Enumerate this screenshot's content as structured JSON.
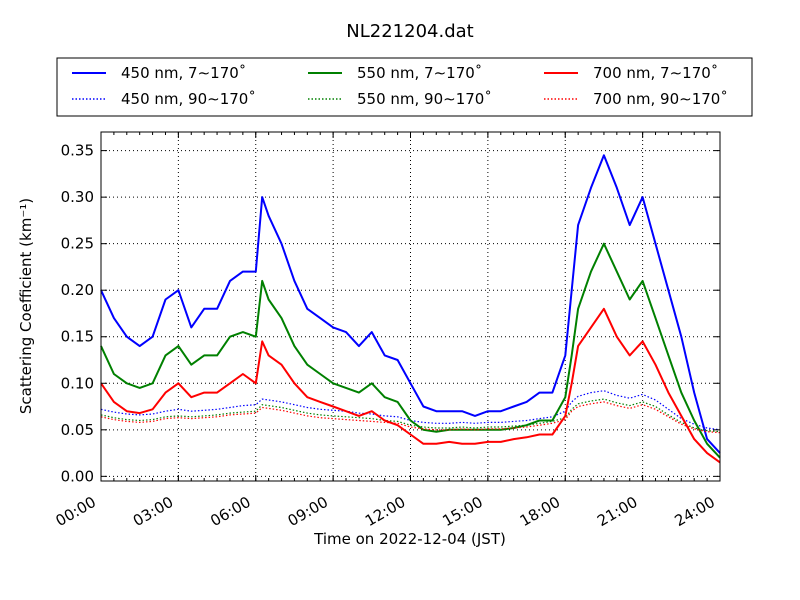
{
  "chart_data": {
    "type": "line",
    "title": "NL221204.dat",
    "xlabel": "Time on 2022-12-04 (JST)",
    "ylabel": "Scattering Coefficient (km⁻¹)",
    "xlim": [
      0,
      24
    ],
    "ylim": [
      -0.005,
      0.37
    ],
    "x_ticks": [
      0,
      3,
      6,
      9,
      12,
      15,
      18,
      21,
      24
    ],
    "x_tick_labels": [
      "00:00",
      "03:00",
      "06:00",
      "09:00",
      "12:00",
      "15:00",
      "18:00",
      "21:00",
      "24:00"
    ],
    "y_ticks": [
      0.0,
      0.05,
      0.1,
      0.15,
      0.2,
      0.25,
      0.3,
      0.35
    ],
    "y_tick_labels": [
      "0.00",
      "0.05",
      "0.10",
      "0.15",
      "0.20",
      "0.25",
      "0.30",
      "0.35"
    ],
    "grid": true,
    "legend_position": "top",
    "x": [
      0,
      0.5,
      1,
      1.5,
      2,
      2.5,
      3,
      3.5,
      4,
      4.5,
      5,
      5.5,
      6,
      6.25,
      6.5,
      7,
      7.5,
      8,
      8.5,
      9,
      9.5,
      10,
      10.5,
      11,
      11.5,
      12,
      12.5,
      13,
      13.5,
      14,
      14.5,
      15,
      15.5,
      16,
      16.5,
      17,
      17.5,
      18,
      18.25,
      18.5,
      19,
      19.5,
      20,
      20.5,
      21,
      21.5,
      22,
      22.5,
      23,
      23.5,
      24
    ],
    "series": [
      {
        "name": "450 nm, 7∼170˚",
        "color": "#0000ff",
        "style": "solid",
        "values": [
          0.2,
          0.17,
          0.15,
          0.14,
          0.15,
          0.19,
          0.2,
          0.16,
          0.18,
          0.18,
          0.21,
          0.22,
          0.22,
          0.3,
          0.28,
          0.25,
          0.21,
          0.18,
          0.17,
          0.16,
          0.155,
          0.14,
          0.155,
          0.13,
          0.125,
          0.1,
          0.075,
          0.07,
          0.07,
          0.07,
          0.065,
          0.07,
          0.07,
          0.075,
          0.08,
          0.09,
          0.09,
          0.13,
          0.2,
          0.27,
          0.31,
          0.345,
          0.31,
          0.27,
          0.3,
          0.25,
          0.2,
          0.15,
          0.09,
          0.04,
          0.025
        ]
      },
      {
        "name": "450 nm, 90∼170˚",
        "color": "#0000ff",
        "style": "dotted",
        "values": [
          0.072,
          0.069,
          0.067,
          0.066,
          0.067,
          0.07,
          0.072,
          0.07,
          0.071,
          0.072,
          0.074,
          0.076,
          0.077,
          0.083,
          0.082,
          0.08,
          0.077,
          0.074,
          0.072,
          0.071,
          0.07,
          0.068,
          0.067,
          0.065,
          0.064,
          0.06,
          0.058,
          0.057,
          0.057,
          0.058,
          0.057,
          0.058,
          0.058,
          0.059,
          0.06,
          0.062,
          0.064,
          0.07,
          0.08,
          0.086,
          0.09,
          0.092,
          0.087,
          0.084,
          0.088,
          0.082,
          0.072,
          0.062,
          0.056,
          0.052,
          0.05
        ]
      },
      {
        "name": "550 nm, 7∼170˚",
        "color": "#008000",
        "style": "solid",
        "values": [
          0.14,
          0.11,
          0.1,
          0.095,
          0.1,
          0.13,
          0.14,
          0.12,
          0.13,
          0.13,
          0.15,
          0.155,
          0.15,
          0.21,
          0.19,
          0.17,
          0.14,
          0.12,
          0.11,
          0.1,
          0.095,
          0.09,
          0.1,
          0.085,
          0.08,
          0.06,
          0.05,
          0.048,
          0.05,
          0.05,
          0.05,
          0.05,
          0.05,
          0.052,
          0.055,
          0.06,
          0.06,
          0.085,
          0.13,
          0.18,
          0.22,
          0.25,
          0.22,
          0.19,
          0.21,
          0.17,
          0.13,
          0.09,
          0.06,
          0.035,
          0.02
        ]
      },
      {
        "name": "550 nm, 90∼170˚",
        "color": "#008000",
        "style": "dotted",
        "values": [
          0.066,
          0.063,
          0.061,
          0.06,
          0.061,
          0.064,
          0.065,
          0.064,
          0.065,
          0.066,
          0.068,
          0.069,
          0.07,
          0.077,
          0.076,
          0.074,
          0.071,
          0.068,
          0.066,
          0.065,
          0.064,
          0.063,
          0.062,
          0.06,
          0.059,
          0.055,
          0.053,
          0.052,
          0.052,
          0.053,
          0.052,
          0.053,
          0.053,
          0.054,
          0.055,
          0.057,
          0.059,
          0.063,
          0.072,
          0.078,
          0.081,
          0.083,
          0.079,
          0.076,
          0.08,
          0.075,
          0.066,
          0.058,
          0.052,
          0.049,
          0.048
        ]
      },
      {
        "name": "700 nm, 7∼170˚",
        "color": "#ff0000",
        "style": "solid",
        "values": [
          0.1,
          0.08,
          0.07,
          0.068,
          0.072,
          0.09,
          0.1,
          0.085,
          0.09,
          0.09,
          0.1,
          0.11,
          0.1,
          0.145,
          0.13,
          0.12,
          0.1,
          0.085,
          0.08,
          0.075,
          0.07,
          0.065,
          0.07,
          0.06,
          0.055,
          0.045,
          0.035,
          0.035,
          0.037,
          0.035,
          0.035,
          0.037,
          0.037,
          0.04,
          0.042,
          0.045,
          0.045,
          0.065,
          0.1,
          0.14,
          0.16,
          0.18,
          0.15,
          0.13,
          0.145,
          0.12,
          0.09,
          0.065,
          0.04,
          0.025,
          0.015
        ]
      },
      {
        "name": "700 nm, 90∼170˚",
        "color": "#ff0000",
        "style": "dotted",
        "values": [
          0.064,
          0.061,
          0.059,
          0.058,
          0.059,
          0.062,
          0.063,
          0.062,
          0.063,
          0.064,
          0.066,
          0.067,
          0.068,
          0.074,
          0.073,
          0.071,
          0.068,
          0.065,
          0.063,
          0.062,
          0.061,
          0.06,
          0.059,
          0.058,
          0.057,
          0.053,
          0.051,
          0.05,
          0.05,
          0.051,
          0.05,
          0.051,
          0.051,
          0.052,
          0.053,
          0.055,
          0.057,
          0.061,
          0.07,
          0.075,
          0.078,
          0.08,
          0.076,
          0.073,
          0.077,
          0.072,
          0.064,
          0.056,
          0.051,
          0.048,
          0.047
        ]
      }
    ]
  }
}
